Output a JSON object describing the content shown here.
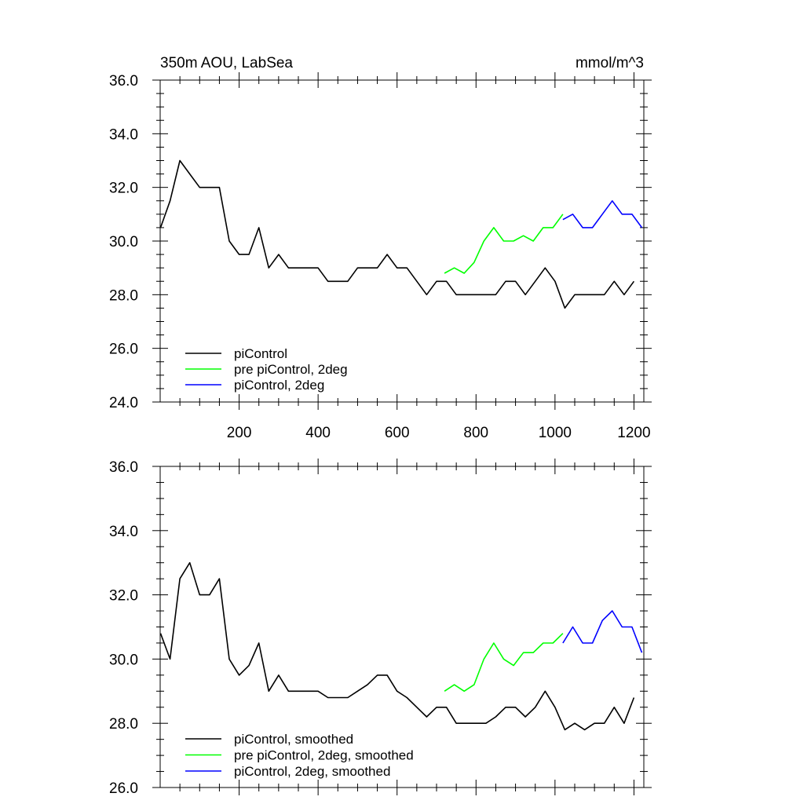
{
  "chart_data": [
    {
      "type": "line",
      "title": "350m AOU, LabSea",
      "units": "mmol/m^3",
      "xlim": [
        0,
        1225
      ],
      "ylim": [
        24,
        36
      ],
      "yticks": [
        "24.0",
        "26.0",
        "28.0",
        "30.0",
        "32.0",
        "34.0",
        "36.0"
      ],
      "xticks": [
        "200",
        "400",
        "600",
        "800",
        "1000",
        "1200"
      ],
      "legend": {
        "placement": "bottom-left"
      },
      "series": [
        {
          "name": "piControl",
          "color": "#000000",
          "x": [
            1,
            25,
            50,
            75,
            100,
            125,
            150,
            175,
            200,
            225,
            250,
            275,
            300,
            325,
            350,
            375,
            400,
            425,
            450,
            475,
            500,
            525,
            550,
            575,
            600,
            625,
            650,
            675,
            700,
            725,
            750,
            775,
            800,
            825,
            850,
            875,
            900,
            925,
            950,
            975,
            1000,
            1025,
            1050,
            1075,
            1100,
            1125,
            1150,
            1175,
            1200
          ],
          "y": [
            30.5,
            31.5,
            33.0,
            32.5,
            32.0,
            32.0,
            32.0,
            30.0,
            29.5,
            29.5,
            30.5,
            29.0,
            29.5,
            29.0,
            29.0,
            29.0,
            29.0,
            28.5,
            28.5,
            28.5,
            29.0,
            29.0,
            29.0,
            29.5,
            29.0,
            29.0,
            28.5,
            28.0,
            28.5,
            28.5,
            28.0,
            28.0,
            28.0,
            28.0,
            28.0,
            28.5,
            28.5,
            28.0,
            28.5,
            29.0,
            28.5,
            27.5,
            28.0,
            28.0,
            28.0,
            28.0,
            28.5,
            28.0,
            28.5
          ]
        },
        {
          "name": "pre piControl, 2deg",
          "color": "#00ff00",
          "x": [
            720,
            745,
            770,
            795,
            820,
            845,
            870,
            895,
            920,
            945,
            970,
            995,
            1020
          ],
          "y": [
            28.8,
            29.0,
            28.8,
            29.2,
            30.0,
            30.5,
            30.0,
            30.0,
            30.2,
            30.0,
            30.5,
            30.5,
            31.0
          ]
        },
        {
          "name": "piControl, 2deg",
          "color": "#0000ff",
          "x": [
            1020,
            1045,
            1070,
            1095,
            1120,
            1145,
            1170,
            1195,
            1220
          ],
          "y": [
            30.8,
            31.0,
            30.5,
            30.5,
            31.0,
            31.5,
            31.0,
            31.0,
            30.5
          ]
        }
      ]
    },
    {
      "type": "line",
      "xlim": [
        0,
        1225
      ],
      "ylim": [
        26,
        36
      ],
      "yticks": [
        "26.0",
        "28.0",
        "30.0",
        "32.0",
        "34.0",
        "36.0"
      ],
      "legend": {
        "placement": "bottom-left"
      },
      "series": [
        {
          "name": "piControl, smoothed",
          "color": "#000000",
          "x": [
            1,
            25,
            50,
            75,
            100,
            125,
            150,
            175,
            200,
            225,
            250,
            275,
            300,
            325,
            350,
            375,
            400,
            425,
            450,
            475,
            500,
            525,
            550,
            575,
            600,
            625,
            650,
            675,
            700,
            725,
            750,
            775,
            800,
            825,
            850,
            875,
            900,
            925,
            950,
            975,
            1000,
            1025,
            1050,
            1075,
            1100,
            1125,
            1150,
            1175,
            1200
          ],
          "y": [
            30.8,
            30.0,
            32.5,
            33.0,
            32.0,
            32.0,
            32.5,
            30.0,
            29.5,
            29.8,
            30.5,
            29.0,
            29.5,
            29.0,
            29.0,
            29.0,
            29.0,
            28.8,
            28.8,
            28.8,
            29.0,
            29.2,
            29.5,
            29.5,
            29.0,
            28.8,
            28.5,
            28.2,
            28.5,
            28.5,
            28.0,
            28.0,
            28.0,
            28.0,
            28.2,
            28.5,
            28.5,
            28.2,
            28.5,
            29.0,
            28.5,
            27.8,
            28.0,
            27.8,
            28.0,
            28.0,
            28.5,
            28.0,
            28.8
          ]
        },
        {
          "name": "pre piControl, 2deg, smoothed",
          "color": "#00ff00",
          "x": [
            720,
            745,
            770,
            795,
            820,
            845,
            870,
            895,
            920,
            945,
            970,
            995,
            1020
          ],
          "y": [
            29.0,
            29.2,
            29.0,
            29.2,
            30.0,
            30.5,
            30.0,
            29.8,
            30.2,
            30.2,
            30.5,
            30.5,
            30.8
          ]
        },
        {
          "name": "piControl, 2deg, smoothed",
          "color": "#0000ff",
          "x": [
            1020,
            1045,
            1070,
            1095,
            1120,
            1145,
            1170,
            1195,
            1220
          ],
          "y": [
            30.5,
            31.0,
            30.5,
            30.5,
            31.2,
            31.5,
            31.0,
            31.0,
            30.2
          ]
        }
      ]
    }
  ]
}
